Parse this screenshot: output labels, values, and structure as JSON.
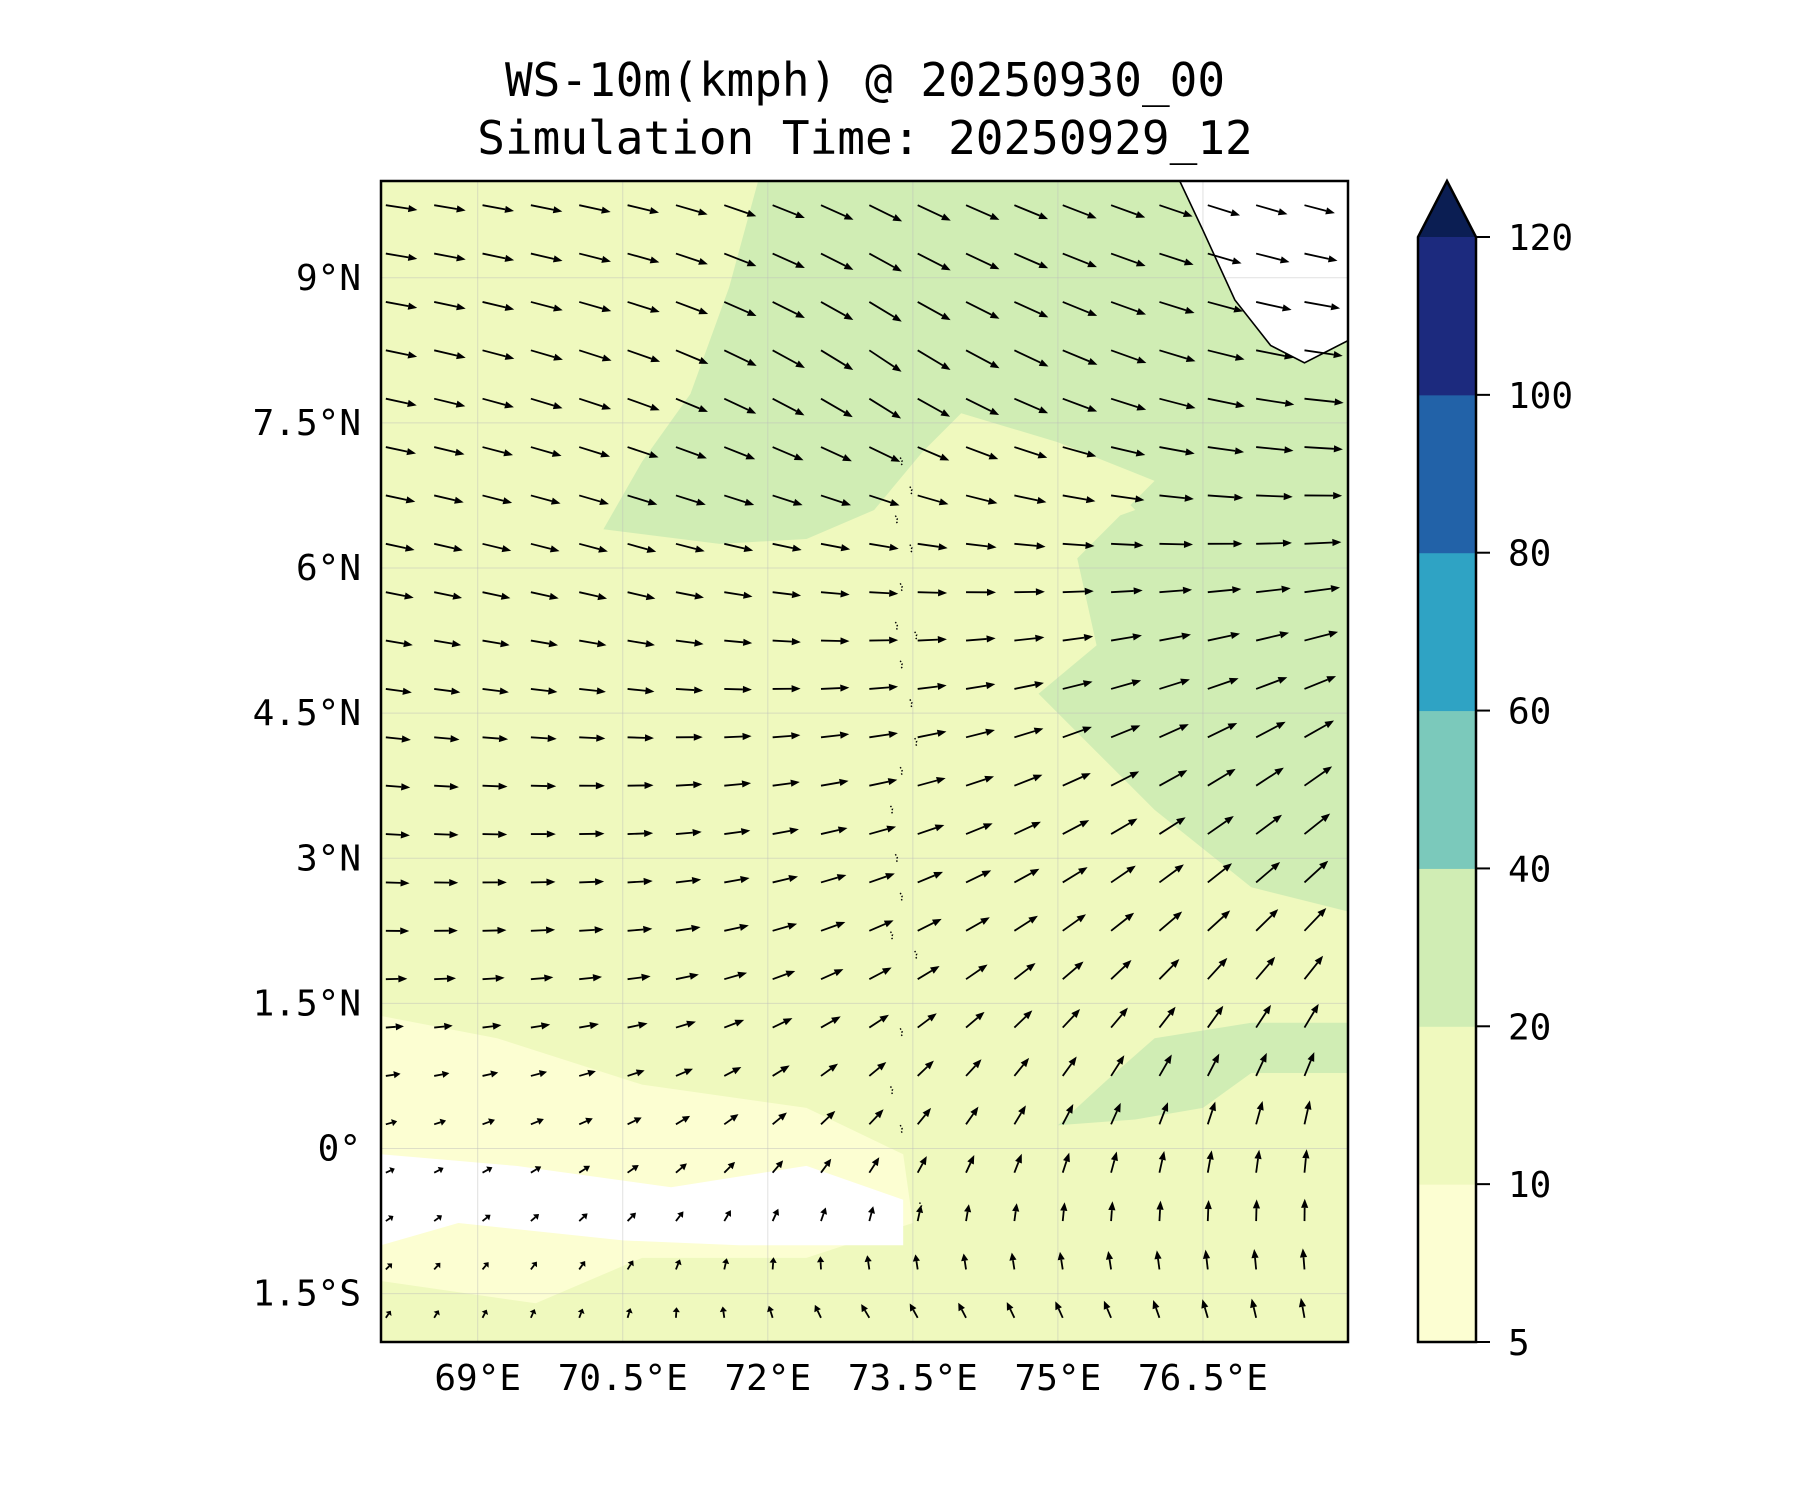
{
  "chart_data": {
    "type": "heatmap",
    "subtype": "filled-contour with wind quiver",
    "title_line1": "WS-10m(kmph) @ 20250930_00",
    "title_line2": "Simulation Time: 20250929_12",
    "xlim": [
      68,
      78
    ],
    "ylim": [
      -2,
      10
    ],
    "x_ticks": [
      69,
      70.5,
      72,
      73.5,
      75,
      76.5
    ],
    "x_tick_labels": [
      "69°E",
      "70.5°E",
      "72°E",
      "73.5°E",
      "75°E",
      "76.5°E"
    ],
    "y_ticks": [
      9,
      7.5,
      6,
      4.5,
      3,
      1.5,
      0,
      -1.5
    ],
    "y_tick_labels": [
      "9°N",
      "7.5°N",
      "6°N",
      "4.5°N",
      "3°N",
      "1.5°N",
      "0°",
      "1.5°S"
    ],
    "grid": true,
    "colorbar": {
      "levels": [
        5,
        10,
        20,
        40,
        60,
        80,
        100,
        120
      ],
      "tick_labels": [
        "5",
        "10",
        "20",
        "40",
        "60",
        "80",
        "100",
        "120"
      ],
      "colors": [
        "#fcfed2",
        "#eff9be",
        "#d0edb4",
        "#7bc9bb",
        "#2fa3c4",
        "#2262a8",
        "#1c2a7e"
      ],
      "extend_color": "#0b1e53",
      "extend": "max",
      "placement": "right"
    },
    "background_level_color": "#eff9be",
    "contour_regions": [
      {
        "level": "20-40",
        "color": "#d0edb4",
        "lonlat": [
          [
            71.9,
            10
          ],
          [
            71.6,
            8.9
          ],
          [
            71.2,
            7.8
          ],
          [
            70.7,
            7.1
          ],
          [
            70.3,
            6.4
          ],
          [
            71.5,
            6.25
          ],
          [
            72.4,
            6.3
          ],
          [
            73.1,
            6.6
          ],
          [
            73.6,
            7.2
          ],
          [
            74,
            7.6
          ],
          [
            75,
            7.3
          ],
          [
            76,
            6.9
          ],
          [
            75.2,
            6.1
          ],
          [
            75.4,
            5.2
          ],
          [
            74.8,
            4.7
          ],
          [
            75.4,
            4.1
          ],
          [
            76,
            3.5
          ],
          [
            77,
            2.7
          ],
          [
            78,
            2.45
          ],
          [
            78,
            10
          ]
        ]
      },
      {
        "level": "10-20",
        "color": "#eff9be",
        "lonlat": [
          [
            73.8,
            7.4
          ],
          [
            74.6,
            7.2
          ],
          [
            75.5,
            6.9
          ],
          [
            75.8,
            6.6
          ],
          [
            75.1,
            6.35
          ],
          [
            74.3,
            6.45
          ],
          [
            73.6,
            6.7
          ]
        ]
      },
      {
        "level": "20-40",
        "color": "#d0edb4",
        "lonlat": [
          [
            75,
            0.24
          ],
          [
            75.5,
            0.7
          ],
          [
            76,
            1.14
          ],
          [
            77,
            1.3
          ],
          [
            78,
            1.3
          ],
          [
            78,
            0.78
          ],
          [
            77,
            0.78
          ],
          [
            76.5,
            0.42
          ],
          [
            75.8,
            0.3
          ]
        ]
      },
      {
        "level": "5-10",
        "color": "#fcfed2",
        "lonlat": [
          [
            68,
            1.37
          ],
          [
            69.2,
            1.14
          ],
          [
            70.7,
            0.66
          ],
          [
            72.4,
            0.42
          ],
          [
            73.4,
            -0.06
          ],
          [
            73.5,
            -0.77
          ],
          [
            72.4,
            -1.13
          ],
          [
            70.7,
            -1.13
          ],
          [
            69.6,
            -1.6
          ],
          [
            68,
            -1.37
          ]
        ]
      },
      {
        "level": "<5",
        "color": "#ffffff",
        "lonlat": [
          [
            68,
            -0.06
          ],
          [
            69.4,
            -0.18
          ],
          [
            71,
            -0.4
          ],
          [
            72.4,
            -0.18
          ],
          [
            73.4,
            -0.53
          ],
          [
            73.4,
            -1
          ],
          [
            71.7,
            -1
          ],
          [
            70.5,
            -0.95
          ],
          [
            68.8,
            -0.77
          ],
          [
            68,
            -1
          ]
        ]
      },
      {
        "level": "land",
        "color": "#ffffff",
        "lonlat": [
          [
            76.26,
            10
          ],
          [
            76.5,
            9.49
          ],
          [
            76.83,
            8.77
          ],
          [
            77.2,
            8.3
          ],
          [
            77.55,
            8.12
          ],
          [
            78,
            8.35
          ],
          [
            78,
            10
          ]
        ]
      }
    ],
    "coastline_lonlat": [
      [
        76.26,
        10
      ],
      [
        76.5,
        9.49
      ],
      [
        76.83,
        8.77
      ],
      [
        77.2,
        8.3
      ],
      [
        77.55,
        8.12
      ],
      [
        78,
        8.35
      ]
    ],
    "islands_lonlat": [
      [
        73.4,
        7.1
      ],
      [
        73.5,
        6.8
      ],
      [
        73.35,
        6.5
      ],
      [
        73.5,
        6.2
      ],
      [
        73.4,
        5.8
      ],
      [
        73.35,
        5.4
      ],
      [
        73.55,
        5.3
      ],
      [
        73.4,
        5.0
      ],
      [
        73.5,
        4.6
      ],
      [
        73.55,
        4.2
      ],
      [
        73.4,
        3.9
      ],
      [
        73.3,
        3.5
      ],
      [
        73.35,
        3.0
      ],
      [
        73.4,
        2.6
      ],
      [
        73.3,
        2.2
      ],
      [
        73.55,
        2.0
      ],
      [
        73.4,
        1.2
      ],
      [
        73.3,
        0.6
      ],
      [
        73.4,
        0.2
      ],
      [
        73.6,
        -0.6
      ]
    ],
    "wind_grid": {
      "units": "kmph",
      "direction_convention": "degrees counterclockwise from east (direction wind blows toward)",
      "lats": [
        10,
        8,
        6,
        4,
        2,
        0,
        -2
      ],
      "lons": [
        68,
        70.5,
        73,
        75.5,
        78
      ],
      "dir_speed": [
        [
          [
            -8,
            22
          ],
          [
            -12,
            22
          ],
          [
            -25,
            25
          ],
          [
            -20,
            25
          ],
          [
            -15,
            20
          ]
        ],
        [
          [
            -12,
            22
          ],
          [
            -20,
            24
          ],
          [
            -35,
            27
          ],
          [
            -20,
            26
          ],
          [
            -5,
            28
          ]
        ],
        [
          [
            -12,
            20
          ],
          [
            -15,
            20
          ],
          [
            -5,
            20
          ],
          [
            0,
            22
          ],
          [
            5,
            26
          ]
        ],
        [
          [
            -5,
            17
          ],
          [
            0,
            18
          ],
          [
            10,
            20
          ],
          [
            25,
            22
          ],
          [
            35,
            24
          ]
        ],
        [
          [
            0,
            16
          ],
          [
            5,
            17
          ],
          [
            25,
            18
          ],
          [
            40,
            20
          ],
          [
            50,
            22
          ]
        ],
        [
          [
            20,
            7
          ],
          [
            30,
            10
          ],
          [
            50,
            14
          ],
          [
            70,
            16
          ],
          [
            85,
            17
          ]
        ],
        [
          [
            60,
            6
          ],
          [
            80,
            7
          ],
          [
            130,
            12
          ],
          [
            120,
            13
          ],
          [
            100,
            14
          ]
        ]
      ],
      "arrow_spacing_deg": 0.5
    }
  }
}
